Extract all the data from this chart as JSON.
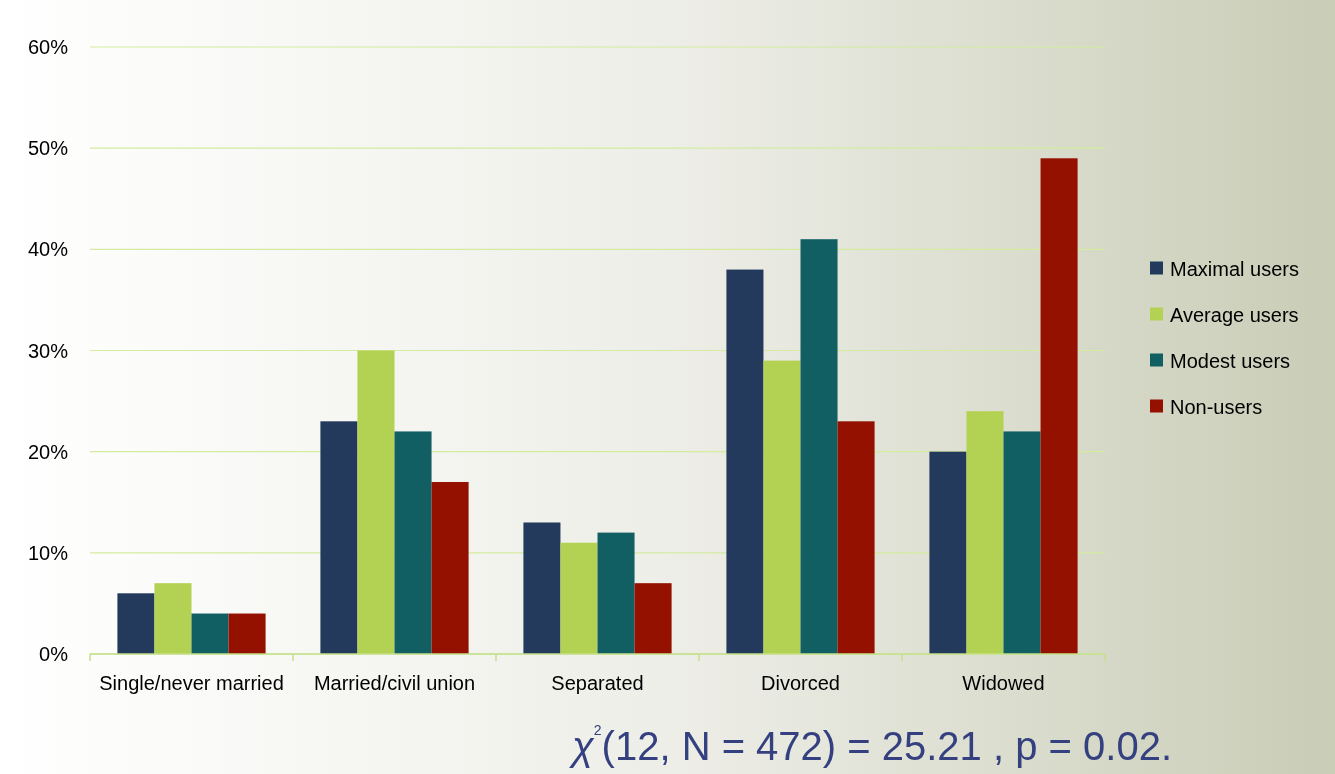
{
  "chart_data": {
    "type": "bar",
    "categories": [
      "Single/never married",
      "Married/civil union",
      "Separated",
      "Divorced",
      "Widowed"
    ],
    "series": [
      {
        "name": "Maximal users",
        "color": "#233a5c",
        "values": [
          6,
          23,
          13,
          38,
          20
        ]
      },
      {
        "name": "Average users",
        "color": "#b3d152",
        "values": [
          7,
          30,
          11,
          29,
          24
        ]
      },
      {
        "name": "Modest users",
        "color": "#115e63",
        "values": [
          4,
          22,
          12,
          41,
          22
        ]
      },
      {
        "name": "Non-users",
        "color": "#941100",
        "values": [
          4,
          17,
          7,
          23,
          49
        ]
      }
    ],
    "ylim": [
      0,
      60
    ],
    "yticks": [
      {
        "value": 0,
        "label": "0%"
      },
      {
        "value": 10,
        "label": "10%"
      },
      {
        "value": 20,
        "label": "20%"
      },
      {
        "value": 30,
        "label": "30%"
      },
      {
        "value": 40,
        "label": "40%"
      },
      {
        "value": 50,
        "label": "50%"
      },
      {
        "value": 60,
        "label": "60%"
      }
    ],
    "grid": "y",
    "legend": "right",
    "annotations": [
      "χ$^{2}$(12, N = 472) = 25.21 , p = 0.02."
    ]
  }
}
